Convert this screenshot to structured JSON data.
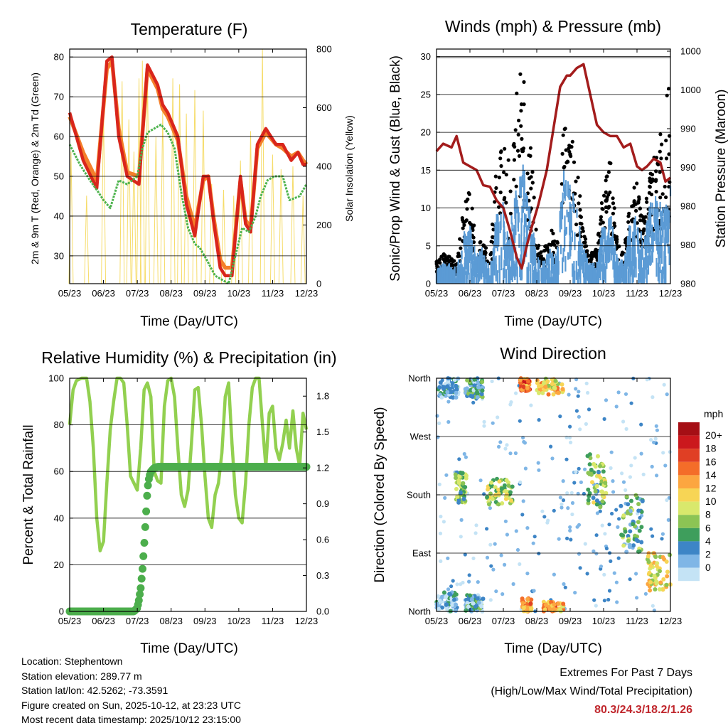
{
  "chart_data": [
    {
      "type": "line",
      "title": "Temperature (F)",
      "xlabel": "Time (Day/UTC)",
      "ylabel": "2m & 9m T (Red, Orange) & 2m Td (Green)",
      "ylabel_right": "Solar Insolation (Yellow)",
      "x_ticks": [
        "05/23",
        "06/23",
        "07/23",
        "08/23",
        "09/23",
        "10/23",
        "11/23",
        "12/23"
      ],
      "ylim": [
        23,
        82
      ],
      "y_ticks": [
        30,
        40,
        50,
        60,
        70,
        80
      ],
      "ylim_right": [
        0,
        800
      ],
      "y_ticks_right": [
        0,
        200,
        400,
        600,
        800
      ],
      "series": [
        {
          "name": "2m T",
          "color": "#d9261c",
          "x": [
            0,
            0.4,
            0.8,
            1.1,
            1.25,
            1.45,
            1.7,
            2.05,
            2.3,
            2.6,
            2.75,
            2.9,
            3.2,
            3.45,
            3.7,
            3.95,
            4.1,
            4.25,
            4.45,
            4.6,
            4.8,
            5.05,
            5.2,
            5.35,
            5.55,
            5.8,
            6.1,
            6.3,
            6.55,
            6.75,
            6.9,
            7.0
          ],
          "values": [
            66,
            54,
            47,
            79,
            80,
            60,
            50,
            48,
            78,
            73,
            68,
            66,
            60,
            43,
            35,
            50,
            50,
            39,
            27,
            25,
            25,
            50,
            38,
            36,
            58,
            62,
            58,
            58,
            54,
            56,
            53,
            53
          ]
        },
        {
          "name": "9m T",
          "color": "#f47f2a",
          "x": [
            0,
            0.4,
            0.8,
            1.1,
            1.25,
            1.45,
            1.7,
            2.05,
            2.3,
            2.6,
            2.75,
            2.9,
            3.2,
            3.45,
            3.7,
            3.95,
            4.1,
            4.25,
            4.45,
            4.6,
            4.8,
            5.05,
            5.2,
            5.35,
            5.55,
            5.8,
            6.1,
            6.3,
            6.55,
            6.75,
            6.9,
            7.0
          ],
          "values": [
            65,
            56,
            49,
            77,
            79,
            62,
            51,
            50,
            77,
            72,
            67,
            65,
            59,
            45,
            37,
            49,
            50,
            40,
            29,
            27,
            27,
            49,
            39,
            37,
            57,
            61,
            58,
            57,
            55,
            56,
            54,
            53
          ]
        },
        {
          "name": "2m Td",
          "color": "#4db34d",
          "x": [
            0,
            0.3,
            0.6,
            0.85,
            1.0,
            1.2,
            1.45,
            1.7,
            2.0,
            2.15,
            2.3,
            2.5,
            2.7,
            2.9,
            3.1,
            3.3,
            3.5,
            3.7,
            3.85,
            4.05,
            4.3,
            4.5,
            4.7,
            4.9,
            5.1,
            5.3,
            5.5,
            5.65,
            5.85,
            6.05,
            6.3,
            6.5,
            6.8,
            7.0
          ],
          "values": [
            58,
            53,
            49,
            46,
            44,
            42,
            49,
            48,
            50,
            57,
            61,
            62,
            63,
            61,
            57,
            46,
            37,
            33,
            32,
            29,
            25,
            24,
            23,
            30,
            37,
            36,
            40,
            45,
            49,
            50,
            50,
            44,
            45,
            48
          ]
        }
      ],
      "insolation_peaks": [
        {
          "x": 0.04,
          "value": 450
        },
        {
          "x": 0.5,
          "value": 300
        },
        {
          "x": 1.0,
          "value": 600
        },
        {
          "x": 1.55,
          "value": 690
        },
        {
          "x": 1.75,
          "value": 560
        },
        {
          "x": 1.9,
          "value": 450
        },
        {
          "x": 2.05,
          "value": 700
        },
        {
          "x": 2.15,
          "value": 760
        },
        {
          "x": 2.3,
          "value": 740
        },
        {
          "x": 2.55,
          "value": 500
        },
        {
          "x": 2.75,
          "value": 590
        },
        {
          "x": 3.05,
          "value": 700
        },
        {
          "x": 3.25,
          "value": 680
        },
        {
          "x": 3.45,
          "value": 580
        },
        {
          "x": 3.7,
          "value": 660
        },
        {
          "x": 3.95,
          "value": 590
        },
        {
          "x": 4.2,
          "value": 340
        },
        {
          "x": 4.55,
          "value": 320
        },
        {
          "x": 4.85,
          "value": 300
        },
        {
          "x": 5.05,
          "value": 420
        },
        {
          "x": 5.35,
          "value": 520
        },
        {
          "x": 5.7,
          "value": 800
        },
        {
          "x": 6.0,
          "value": 440
        },
        {
          "x": 6.25,
          "value": 390
        },
        {
          "x": 6.6,
          "value": 400
        },
        {
          "x": 6.9,
          "value": 300
        }
      ]
    },
    {
      "type": "scatter",
      "title": "Winds (mph) & Pressure (mb)",
      "xlabel": "Time (Day/UTC)",
      "ylabel": "Sonic/Prop Wind & Gust (Blue, Black)",
      "ylabel_right": "Station Pressure (Maroon)",
      "x_ticks": [
        "05/23",
        "06/23",
        "07/23",
        "08/23",
        "09/23",
        "10/23",
        "11/23",
        "12/23"
      ],
      "ylim": [
        0,
        31
      ],
      "y_ticks": [
        0,
        5,
        10,
        15,
        20,
        25,
        30
      ],
      "y_ticks_right": [
        "980",
        "980",
        "980",
        "990",
        "990",
        "1000",
        "1000"
      ],
      "pressure": {
        "name": "Station Pressure",
        "color": "#a31c1c",
        "x": [
          0,
          0.2,
          0.45,
          0.6,
          0.8,
          1.0,
          1.2,
          1.4,
          1.6,
          1.8,
          2.0,
          2.2,
          2.4,
          2.55,
          2.7,
          2.85,
          3.05,
          3.3,
          3.5,
          3.7,
          3.9,
          4.0,
          4.2,
          4.4,
          4.6,
          4.8,
          5.0,
          5.2,
          5.4,
          5.6,
          5.8,
          6.0,
          6.15,
          6.3,
          6.5,
          6.7,
          6.85,
          7.0
        ],
        "values": [
          17.5,
          18.5,
          18.0,
          19.5,
          16.0,
          15.5,
          15.0,
          13.0,
          12.8,
          11.0,
          10.0,
          7.0,
          3.5,
          2.0,
          5.0,
          7.5,
          10.5,
          15.0,
          20.5,
          26.0,
          27.5,
          27.5,
          28.5,
          29.0,
          25.0,
          21.0,
          20.0,
          19.5,
          19.5,
          18.0,
          18.5,
          15.5,
          15.0,
          15.5,
          16.5,
          16.0,
          13.5,
          14.0
        ]
      },
      "sonic_envelope": {
        "name": "Sonic/Prop Wind",
        "color": "#5b9bd5",
        "x": [
          0,
          0.2,
          0.4,
          0.6,
          0.8,
          1.0,
          1.2,
          1.4,
          1.6,
          1.8,
          2.0,
          2.2,
          2.4,
          2.6,
          2.8,
          3.0,
          3.2,
          3.4,
          3.6,
          3.8,
          4.0,
          4.2,
          4.4,
          4.6,
          4.8,
          5.0,
          5.2,
          5.4,
          5.6,
          5.8,
          6.0,
          6.2,
          6.4,
          6.6,
          6.8,
          7.0
        ],
        "values": [
          2,
          3,
          3,
          2,
          7,
          8,
          4,
          5,
          2,
          10,
          11,
          8,
          13,
          17,
          11,
          4,
          3,
          5,
          4,
          16,
          14,
          10,
          5,
          3,
          3,
          9,
          10,
          4,
          3,
          9,
          10,
          6,
          11,
          12,
          10,
          13
        ]
      },
      "gust_envelope": {
        "name": "Gust",
        "color": "#000000",
        "x": [
          0,
          0.2,
          0.4,
          0.6,
          0.8,
          1.0,
          1.2,
          1.4,
          1.6,
          1.8,
          2.0,
          2.2,
          2.4,
          2.6,
          2.8,
          3.0,
          3.2,
          3.4,
          3.6,
          3.8,
          4.0,
          4.2,
          4.4,
          4.6,
          4.8,
          5.0,
          5.2,
          5.4,
          5.6,
          5.8,
          6.0,
          6.2,
          6.4,
          6.6,
          6.8,
          7.0
        ],
        "values": [
          3,
          4,
          4,
          3,
          10,
          13,
          5,
          6,
          3,
          17,
          24,
          15,
          27,
          29,
          20,
          6,
          4,
          8,
          6,
          22,
          21,
          16,
          7,
          4,
          5,
          13,
          17,
          6,
          4,
          11,
          14,
          9,
          15,
          18,
          22,
          28
        ]
      }
    },
    {
      "type": "line",
      "title": "Relative Humidity (%) & Precipitation (in)",
      "xlabel": "Time (Day/UTC)",
      "ylabel": "Percent & Total Rainfall",
      "x_ticks": [
        "05/23",
        "06/23",
        "07/23",
        "08/23",
        "09/23",
        "10/23",
        "11/23",
        "12/23"
      ],
      "ylim": [
        0,
        100
      ],
      "y_ticks": [
        0,
        20,
        40,
        60,
        80,
        100
      ],
      "y_ticks_right": [
        "0.0",
        "0.3",
        "0.6",
        "0.9",
        "1.2",
        "1.5",
        "1.8"
      ],
      "series": [
        {
          "name": "Relative Humidity",
          "color": "#92d050",
          "x": [
            0,
            0.1,
            0.2,
            0.35,
            0.5,
            0.6,
            0.7,
            0.8,
            0.9,
            1.0,
            1.1,
            1.2,
            1.3,
            1.4,
            1.5,
            1.6,
            1.7,
            1.8,
            1.9,
            2.0,
            2.1,
            2.2,
            2.3,
            2.4,
            2.5,
            2.6,
            2.7,
            2.8,
            2.9,
            3.0,
            3.1,
            3.2,
            3.3,
            3.4,
            3.5,
            3.6,
            3.7,
            3.8,
            3.9,
            4.0,
            4.1,
            4.2,
            4.3,
            4.4,
            4.5,
            4.6,
            4.7,
            4.8,
            4.9,
            5.0,
            5.1,
            5.2,
            5.3,
            5.4,
            5.5,
            5.6,
            5.7,
            5.8,
            5.9,
            6.0,
            6.1,
            6.2,
            6.3,
            6.4,
            6.5,
            6.6,
            6.7,
            6.8,
            6.9,
            7.0
          ],
          "values": [
            80,
            95,
            99,
            100,
            100,
            90,
            70,
            40,
            26,
            30,
            55,
            78,
            90,
            100,
            100,
            98,
            80,
            58,
            55,
            52,
            70,
            95,
            98,
            92,
            60,
            56,
            55,
            88,
            99,
            100,
            92,
            70,
            50,
            45,
            52,
            72,
            95,
            96,
            80,
            58,
            40,
            36,
            50,
            55,
            68,
            92,
            98,
            72,
            50,
            40,
            38,
            55,
            80,
            96,
            100,
            100,
            80,
            62,
            85,
            88,
            70,
            65,
            72,
            82,
            70,
            86,
            70,
            62,
            85,
            78
          ]
        },
        {
          "name": "Total Rainfall",
          "color": "#4cae4c",
          "axis": "right",
          "x": [
            0,
            0.5,
            1.0,
            1.5,
            1.9,
            2.0,
            2.05,
            2.1,
            2.15,
            2.2,
            2.25,
            2.3,
            2.35,
            2.4,
            2.5,
            2.6,
            3.0,
            4.0,
            5.0,
            6.0,
            7.0
          ],
          "values": [
            0,
            0,
            0,
            0,
            0,
            0.03,
            0.1,
            0.2,
            0.35,
            0.55,
            0.8,
            1.05,
            1.15,
            1.2,
            1.23,
            1.24,
            1.24,
            1.24,
            1.24,
            1.24,
            1.24
          ]
        }
      ]
    },
    {
      "type": "scatter",
      "title": "Wind Direction",
      "xlabel": "Time (Day/UTC)",
      "ylabel": "Direction (Colored By Speed)",
      "x_ticks": [
        "05/23",
        "06/23",
        "07/23",
        "08/23",
        "09/23",
        "10/23",
        "11/23",
        "12/23"
      ],
      "y_ticks": [
        "North",
        "East",
        "South",
        "West",
        "North"
      ],
      "ylim": [
        0,
        360
      ],
      "colorbar": {
        "title": "mph",
        "labels": [
          "20+",
          "18",
          "16",
          "14",
          "12",
          "10",
          "8",
          "6",
          "4",
          "2",
          "0"
        ],
        "colors": [
          "#a50f15",
          "#cb181d",
          "#e03f24",
          "#f46d29",
          "#fca640",
          "#f7d555",
          "#d9e86c",
          "#8cc454",
          "#3e9e5c",
          "#3d85c6",
          "#7fb6e6",
          "#c4e3f5"
        ]
      },
      "clusters": [
        {
          "x": [
            0.0,
            0.6
          ],
          "dir": [
            0,
            30
          ],
          "speed": 3
        },
        {
          "x": [
            0.05,
            0.7
          ],
          "dir": [
            330,
            360
          ],
          "speed": 3
        },
        {
          "x": [
            0.85,
            1.4
          ],
          "dir": [
            0,
            25
          ],
          "speed": 4
        },
        {
          "x": [
            0.85,
            1.4
          ],
          "dir": [
            330,
            360
          ],
          "speed": 4
        },
        {
          "x": [
            0.55,
            0.9
          ],
          "dir": [
            165,
            215
          ],
          "speed": 7
        },
        {
          "x": [
            1.5,
            2.3
          ],
          "dir": [
            165,
            205
          ],
          "speed": 9
        },
        {
          "x": [
            2.5,
            2.8
          ],
          "dir": [
            340,
            360
          ],
          "speed": 16
        },
        {
          "x": [
            2.55,
            2.85
          ],
          "dir": [
            0,
            20
          ],
          "speed": 14
        },
        {
          "x": [
            3.0,
            3.8
          ],
          "dir": [
            335,
            360
          ],
          "speed": 12
        },
        {
          "x": [
            3.2,
            3.8
          ],
          "dir": [
            0,
            15
          ],
          "speed": 14
        },
        {
          "x": [
            4.5,
            5.1
          ],
          "dir": [
            160,
            245
          ],
          "speed": 8
        },
        {
          "x": [
            5.5,
            6.2
          ],
          "dir": [
            90,
            180
          ],
          "speed": 6
        },
        {
          "x": [
            6.3,
            7.0
          ],
          "dir": [
            30,
            90
          ],
          "speed": 11
        }
      ]
    }
  ],
  "info": {
    "location": "Location: Stephentown",
    "elevation": "Station elevation: 289.77 m",
    "latlon": "Station lat/lon: 42.5262; -73.3591",
    "created": "Figure created on Sun, 2025-10-12, at 23:23 UTC",
    "latest": "Most recent data timestamp: 2025/10/12 23:15:00"
  },
  "extremes": {
    "title": "Extremes For Past 7 Days",
    "subtitle": "(High/Low/Max Wind/Total Precipitation)",
    "values": "80.3/24.3/18.2/1.26"
  }
}
